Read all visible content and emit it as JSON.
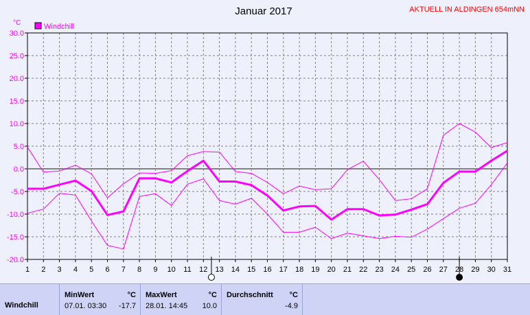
{
  "header": {
    "title": "Januar 2017",
    "station": "AKTUELL IN ALDINGEN 654mNN"
  },
  "colors": {
    "series": "#ff00ff",
    "zero_line": "#808080",
    "grid": "#808080",
    "station_text": "#ff0000"
  },
  "chart_data": {
    "type": "line",
    "title": "Januar 2017",
    "ylabel": "°C",
    "ylim": [
      -20,
      30
    ],
    "yticks": [
      30.0,
      25.0,
      20.0,
      15.0,
      10.0,
      5.0,
      0.0,
      -5.0,
      -10.0,
      -15.0,
      -20.0
    ],
    "ytick_labels": [
      "30.0",
      "25.0",
      "20.0",
      "15.0",
      "10.0",
      "5.0",
      "0.0",
      "-5.0",
      "-10.0",
      "-15.0",
      "-20.0"
    ],
    "x": [
      1,
      2,
      3,
      4,
      5,
      6,
      7,
      8,
      9,
      10,
      11,
      12,
      13,
      14,
      15,
      16,
      17,
      18,
      19,
      20,
      21,
      22,
      23,
      24,
      25,
      26,
      27,
      28,
      29,
      30,
      31
    ],
    "legend": [
      "Windchill"
    ],
    "series": [
      {
        "name": "Windchill",
        "role": "avg",
        "values": [
          -4.4,
          -4.4,
          -3.5,
          -2.6,
          -4.9,
          -10.2,
          -9.4,
          -2.1,
          -2.1,
          -3.0,
          -0.5,
          1.8,
          -2.8,
          -2.8,
          -3.6,
          -5.9,
          -9.2,
          -8.3,
          -8.2,
          -11.2,
          -8.9,
          -8.9,
          -10.3,
          -10.1,
          -9.0,
          -7.8,
          -3.1,
          -0.6,
          -0.6,
          1.8,
          4.0
        ]
      },
      {
        "role": "max",
        "values": [
          4.8,
          -0.7,
          -0.5,
          0.8,
          -1.1,
          -6.4,
          -3.3,
          -0.9,
          -1.0,
          -0.4,
          2.9,
          3.8,
          3.7,
          -0.6,
          -1.0,
          -3.0,
          -5.5,
          -3.8,
          -4.6,
          -4.4,
          -0.2,
          1.7,
          -2.4,
          -7.0,
          -6.6,
          -4.4,
          7.4,
          10.0,
          8.1,
          4.7,
          5.8
        ]
      },
      {
        "role": "min",
        "values": [
          -9.8,
          -8.9,
          -5.4,
          -5.8,
          -11.5,
          -16.9,
          -17.7,
          -6.1,
          -5.5,
          -8.1,
          -3.4,
          -2.2,
          -7.0,
          -7.8,
          -6.5,
          -10.0,
          -14.0,
          -14.0,
          -12.9,
          -15.4,
          -14.2,
          -14.8,
          -15.4,
          -14.9,
          -15.1,
          -13.3,
          -11.0,
          -8.7,
          -7.6,
          -3.5,
          1.3
        ]
      }
    ],
    "markers": [
      {
        "x": 12.5,
        "symbol": "open-circle"
      },
      {
        "x": 28,
        "symbol": "filled-circle"
      }
    ]
  },
  "stats": {
    "row_label": "Windchill",
    "min_header": "MinWert",
    "min_unit": "°C",
    "min_date": "07.01.  03:30",
    "min_value": "-17.7",
    "max_header": "MaxWert",
    "max_unit": "°C",
    "max_date": "28.01.  14:45",
    "max_value": "10.0",
    "avg_header": "Durchschnitt",
    "avg_unit": "°C",
    "avg_value": "-4.9"
  }
}
